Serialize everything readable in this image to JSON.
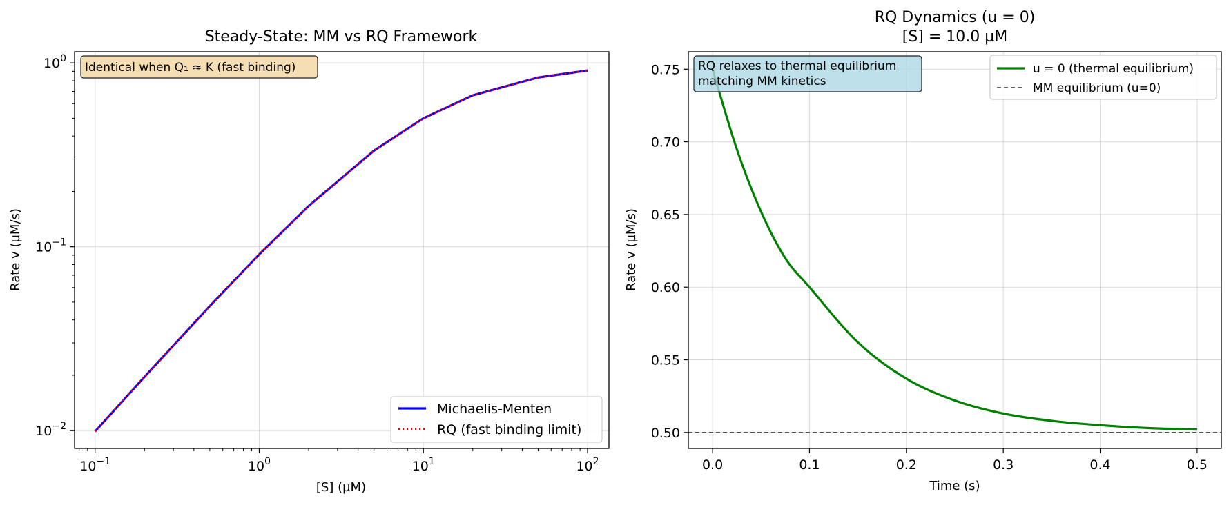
{
  "chart_data": [
    {
      "type": "line",
      "title": "Steady-State: MM vs RQ Framework",
      "xlabel": "[S] (µM)",
      "ylabel": "Rate v (µM/s)",
      "xscale": "log",
      "yscale": "log",
      "xlim": [
        0.075,
        135
      ],
      "ylim": [
        0.008,
        1.15
      ],
      "x_ticks": [
        {
          "value": 0.1,
          "base": "10",
          "exp": "−1"
        },
        {
          "value": 1,
          "base": "10",
          "exp": "0"
        },
        {
          "value": 10,
          "base": "10",
          "exp": "1"
        },
        {
          "value": 100,
          "base": "10",
          "exp": "2"
        }
      ],
      "y_ticks": [
        {
          "value": 0.01,
          "base": "10",
          "exp": "−2"
        },
        {
          "value": 0.1,
          "base": "10",
          "exp": "−1"
        },
        {
          "value": 1,
          "base": "10",
          "exp": "0"
        }
      ],
      "grid": true,
      "legend_position": "lower-right",
      "annotation": "Identical when Q₁ ≈ K (fast binding)",
      "x": [
        0.1,
        0.2,
        0.5,
        1,
        2,
        5,
        10,
        20,
        50,
        100
      ],
      "series": [
        {
          "name": "Michaelis-Menten",
          "color": "#0000ff",
          "style": "solid",
          "values": [
            0.0099,
            0.0196,
            0.0476,
            0.0909,
            0.1667,
            0.3333,
            0.5,
            0.6667,
            0.8333,
            0.9091
          ]
        },
        {
          "name": "RQ (fast binding limit)",
          "color": "#ff0000",
          "style": "dotted",
          "values": [
            0.0099,
            0.0196,
            0.0476,
            0.0909,
            0.1667,
            0.3333,
            0.5,
            0.6667,
            0.8333,
            0.9091
          ]
        }
      ]
    },
    {
      "type": "line",
      "title": "RQ Dynamics (u = 0)",
      "subtitle": "[S] = 10.0 µM",
      "xlabel": "Time (s)",
      "ylabel": "Rate v (µM/s)",
      "xlim": [
        -0.025,
        0.525
      ],
      "ylim": [
        0.489,
        0.762
      ],
      "x_ticks": [
        "0.0",
        "0.1",
        "0.2",
        "0.3",
        "0.4",
        "0.5"
      ],
      "y_ticks": [
        "0.50",
        "0.55",
        "0.60",
        "0.65",
        "0.70",
        "0.75"
      ],
      "grid": true,
      "legend_position": "upper-right",
      "annotation_lines": [
        "RQ relaxes to thermal equilibrium",
        "matching MM kinetics"
      ],
      "series": [
        {
          "name": "u = 0 (thermal equilibrium)",
          "color": "#008000",
          "style": "solid",
          "x": [
            0,
            0.025,
            0.05,
            0.075,
            0.1,
            0.15,
            0.2,
            0.25,
            0.3,
            0.35,
            0.4,
            0.45,
            0.5
          ],
          "values": [
            0.75,
            0.695,
            0.652,
            0.62,
            0.6,
            0.562,
            0.537,
            0.522,
            0.513,
            0.508,
            0.505,
            0.503,
            0.502
          ]
        },
        {
          "name": "MM equilibrium (u=0)",
          "color": "#333333",
          "style": "dashed",
          "x": [
            -0.025,
            0.525
          ],
          "values": [
            0.5,
            0.5
          ]
        }
      ]
    }
  ]
}
